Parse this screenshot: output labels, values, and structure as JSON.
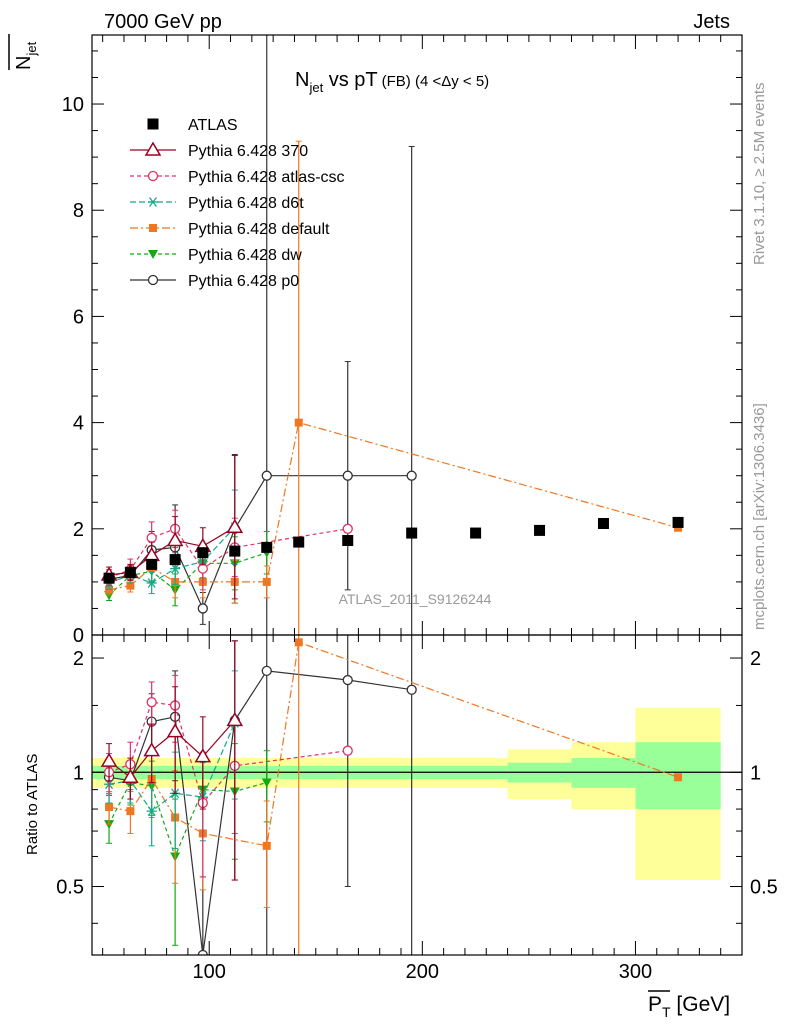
{
  "header": {
    "left": "7000 GeV pp",
    "right": "Jets",
    "side_top": "Rivet 3.1.10, ≥ 2.5M events",
    "side_bottom": "mcplots.cern.ch [arXiv:1306.3436]",
    "watermark": "ATLAS_2011_S9126244"
  },
  "chart_data": [
    {
      "type": "line",
      "panel": "main",
      "title": "N_jet vs pT (FB) (4 < Δy < 5)",
      "title_main": "N",
      "title_sub": "jet",
      "title_mid": " vs pT",
      "title_small": "(FB)  (4 <Δy < 5)",
      "ylabel": "N_jet (mean)",
      "ylabel_main": "N",
      "ylabel_sub": "jet",
      "xlabel": "P_T [GeV]",
      "xlabel_main": "P",
      "xlabel_sub": "T",
      "xlabel_unit": " [GeV]",
      "xlim": [
        45,
        350
      ],
      "ylim": [
        0,
        11.3
      ],
      "y_ticks": [
        0,
        2,
        4,
        6,
        8,
        10
      ],
      "legend_position": "top-left",
      "x": [
        53,
        63,
        73,
        84,
        97,
        112,
        127,
        142,
        165,
        195,
        225,
        255,
        285,
        320
      ],
      "series": [
        {
          "name": "ATLAS",
          "color": "#000000",
          "marker": "square",
          "style": "points",
          "values": [
            1.07,
            1.18,
            1.33,
            1.42,
            1.55,
            1.58,
            1.65,
            1.75,
            1.78,
            1.92,
            1.92,
            1.97,
            2.1,
            2.12
          ]
        },
        {
          "name": "Pythia 6.428 370",
          "color": "#990022",
          "marker": "triangle-up-open",
          "dash": "",
          "values": [
            1.13,
            1.18,
            1.5,
            1.78,
            1.67,
            2.03,
            null,
            null,
            null,
            null,
            null,
            null,
            null,
            null
          ],
          "errors": [
            0.15,
            0.15,
            0.25,
            0.45,
            0.35,
            1.35,
            null,
            null,
            null,
            null,
            null,
            null,
            null,
            null
          ]
        },
        {
          "name": "Pythia 6.428 atlas-csc",
          "color": "#dd3366",
          "marker": "circle-open",
          "dash": "4,3",
          "values": [
            1.08,
            1.23,
            1.83,
            2.0,
            1.25,
            1.65,
            null,
            null,
            2.0,
            null,
            null,
            null,
            null,
            null
          ],
          "errors": [
            0.15,
            0.2,
            0.3,
            0.35,
            0.4,
            0.55,
            null,
            null,
            null,
            null,
            null,
            null,
            null,
            null
          ]
        },
        {
          "name": "Pythia 6.428 d6t",
          "color": "#11aa88",
          "marker": "asterisk",
          "dash": "6,3",
          "values": [
            0.98,
            1.13,
            0.98,
            1.25,
            1.38,
            2.03,
            null,
            null,
            null,
            null,
            null,
            null,
            null,
            null
          ],
          "errors": [
            0.12,
            0.15,
            0.2,
            0.3,
            0.3,
            0.7,
            null,
            null,
            null,
            null,
            null,
            null,
            null,
            null
          ]
        },
        {
          "name": "Pythia 6.428 default",
          "color": "#ee7722",
          "marker": "square-filled",
          "dash": "8,3,2,3",
          "values": [
            0.85,
            0.93,
            1.27,
            1.0,
            1.0,
            1.0,
            1.0,
            4.0,
            null,
            null,
            null,
            null,
            null,
            2.02
          ],
          "errors": [
            0.1,
            0.12,
            0.25,
            0.3,
            0.3,
            0.4,
            0.3,
            5.3,
            null,
            null,
            null,
            null,
            null,
            null
          ]
        },
        {
          "name": "Pythia 6.428 dw",
          "color": "#11aa11",
          "marker": "triangle-down-filled",
          "dash": "4,3",
          "values": [
            0.75,
            1.12,
            1.2,
            0.85,
            1.35,
            1.35,
            1.55,
            null,
            null,
            null,
            null,
            null,
            null,
            null
          ],
          "errors": [
            0.1,
            0.15,
            0.2,
            0.3,
            0.3,
            0.5,
            0.4,
            null,
            null,
            null,
            null,
            null,
            null,
            null
          ]
        },
        {
          "name": "Pythia 6.428 p0",
          "color": "#333333",
          "marker": "circle-open",
          "dash": "",
          "values": [
            1.05,
            1.12,
            1.6,
            1.65,
            0.5,
            2.0,
            3.0,
            null,
            3.0,
            3.0,
            null,
            null,
            null,
            null
          ],
          "errors": [
            0.12,
            0.15,
            0.35,
            0.8,
            0.3,
            1.4,
            9.0,
            null,
            2.15,
            6.2,
            null,
            null,
            null,
            null
          ]
        }
      ]
    },
    {
      "type": "line",
      "panel": "ratio",
      "ylabel": "Ratio to ATLAS",
      "xlim": [
        45,
        350
      ],
      "ylim": [
        0.33,
        2.3
      ],
      "y_ticks": [
        0.5,
        1,
        2
      ],
      "x_ticks": [
        100,
        200,
        300
      ],
      "reference": 1,
      "bands": [
        {
          "x0": 45,
          "x1": 240,
          "inner": 0.04,
          "outer": 0.09
        },
        {
          "x0": 240,
          "x1": 270,
          "inner": 0.06,
          "outer": 0.15
        },
        {
          "x0": 270,
          "x1": 300,
          "inner": 0.09,
          "outer": 0.2
        },
        {
          "x0": 300,
          "x1": 340,
          "inner": 0.2,
          "outer": 0.48
        }
      ],
      "series": [
        {
          "name": "Pythia 6.428 370",
          "color": "#990022",
          "marker": "triangle-up-open",
          "dash": "",
          "values": [
            1.07,
            0.97,
            1.14,
            1.28,
            1.1,
            1.37,
            null,
            null,
            null,
            null,
            null,
            null,
            null,
            null
          ],
          "errors": [
            0.12,
            0.12,
            0.2,
            0.4,
            0.3,
            0.85,
            null,
            null,
            null,
            null,
            null,
            null,
            null,
            null
          ]
        },
        {
          "name": "Pythia 6.428 atlas-csc",
          "color": "#dd3366",
          "marker": "circle-open",
          "dash": "4,3",
          "values": [
            1.0,
            1.05,
            1.53,
            1.5,
            0.83,
            1.04,
            null,
            null,
            1.14,
            null,
            null,
            null,
            null,
            null
          ],
          "errors": [
            0.12,
            0.15,
            0.2,
            0.3,
            0.3,
            0.35,
            null,
            null,
            null,
            null,
            null,
            null,
            null,
            null
          ]
        },
        {
          "name": "Pythia 6.428 d6t",
          "color": "#11aa88",
          "marker": "asterisk",
          "dash": "6,3",
          "values": [
            0.93,
            0.95,
            0.79,
            0.88,
            0.86,
            1.35,
            null,
            null,
            null,
            null,
            null,
            null,
            null,
            null
          ],
          "errors": [
            0.1,
            0.12,
            0.15,
            0.25,
            0.2,
            0.5,
            null,
            null,
            null,
            null,
            null,
            null,
            null,
            null
          ]
        },
        {
          "name": "Pythia 6.428 default",
          "color": "#ee7722",
          "marker": "square-filled",
          "dash": "8,3,2,3",
          "values": [
            0.81,
            0.79,
            0.96,
            0.76,
            0.69,
            null,
            0.64,
            2.2,
            null,
            null,
            null,
            null,
            null,
            0.97
          ],
          "errors": [
            0.08,
            0.1,
            0.2,
            0.25,
            0.2,
            null,
            0.2,
            3.0,
            null,
            null,
            null,
            null,
            null,
            null
          ]
        },
        {
          "name": "Pythia 6.428 dw",
          "color": "#11aa11",
          "marker": "triangle-down-filled",
          "dash": "4,3",
          "values": [
            0.73,
            0.94,
            0.92,
            0.6,
            0.9,
            0.89,
            0.94,
            null,
            null,
            null,
            null,
            null,
            null,
            null
          ],
          "errors": [
            0.08,
            0.12,
            0.15,
            0.25,
            0.2,
            0.3,
            0.2,
            null,
            null,
            null,
            null,
            null,
            null,
            null
          ]
        },
        {
          "name": "Pythia 6.428 p0",
          "color": "#333333",
          "marker": "circle-open",
          "dash": "",
          "values": [
            0.97,
            0.95,
            1.36,
            1.4,
            0.33,
            1.37,
            1.85,
            null,
            1.75,
            1.65,
            null,
            null,
            null,
            null
          ],
          "errors": [
            0.1,
            0.12,
            0.25,
            0.45,
            0.2,
            0.85,
            3.0,
            null,
            1.25,
            3.0,
            null,
            null,
            null,
            null
          ]
        }
      ]
    }
  ]
}
